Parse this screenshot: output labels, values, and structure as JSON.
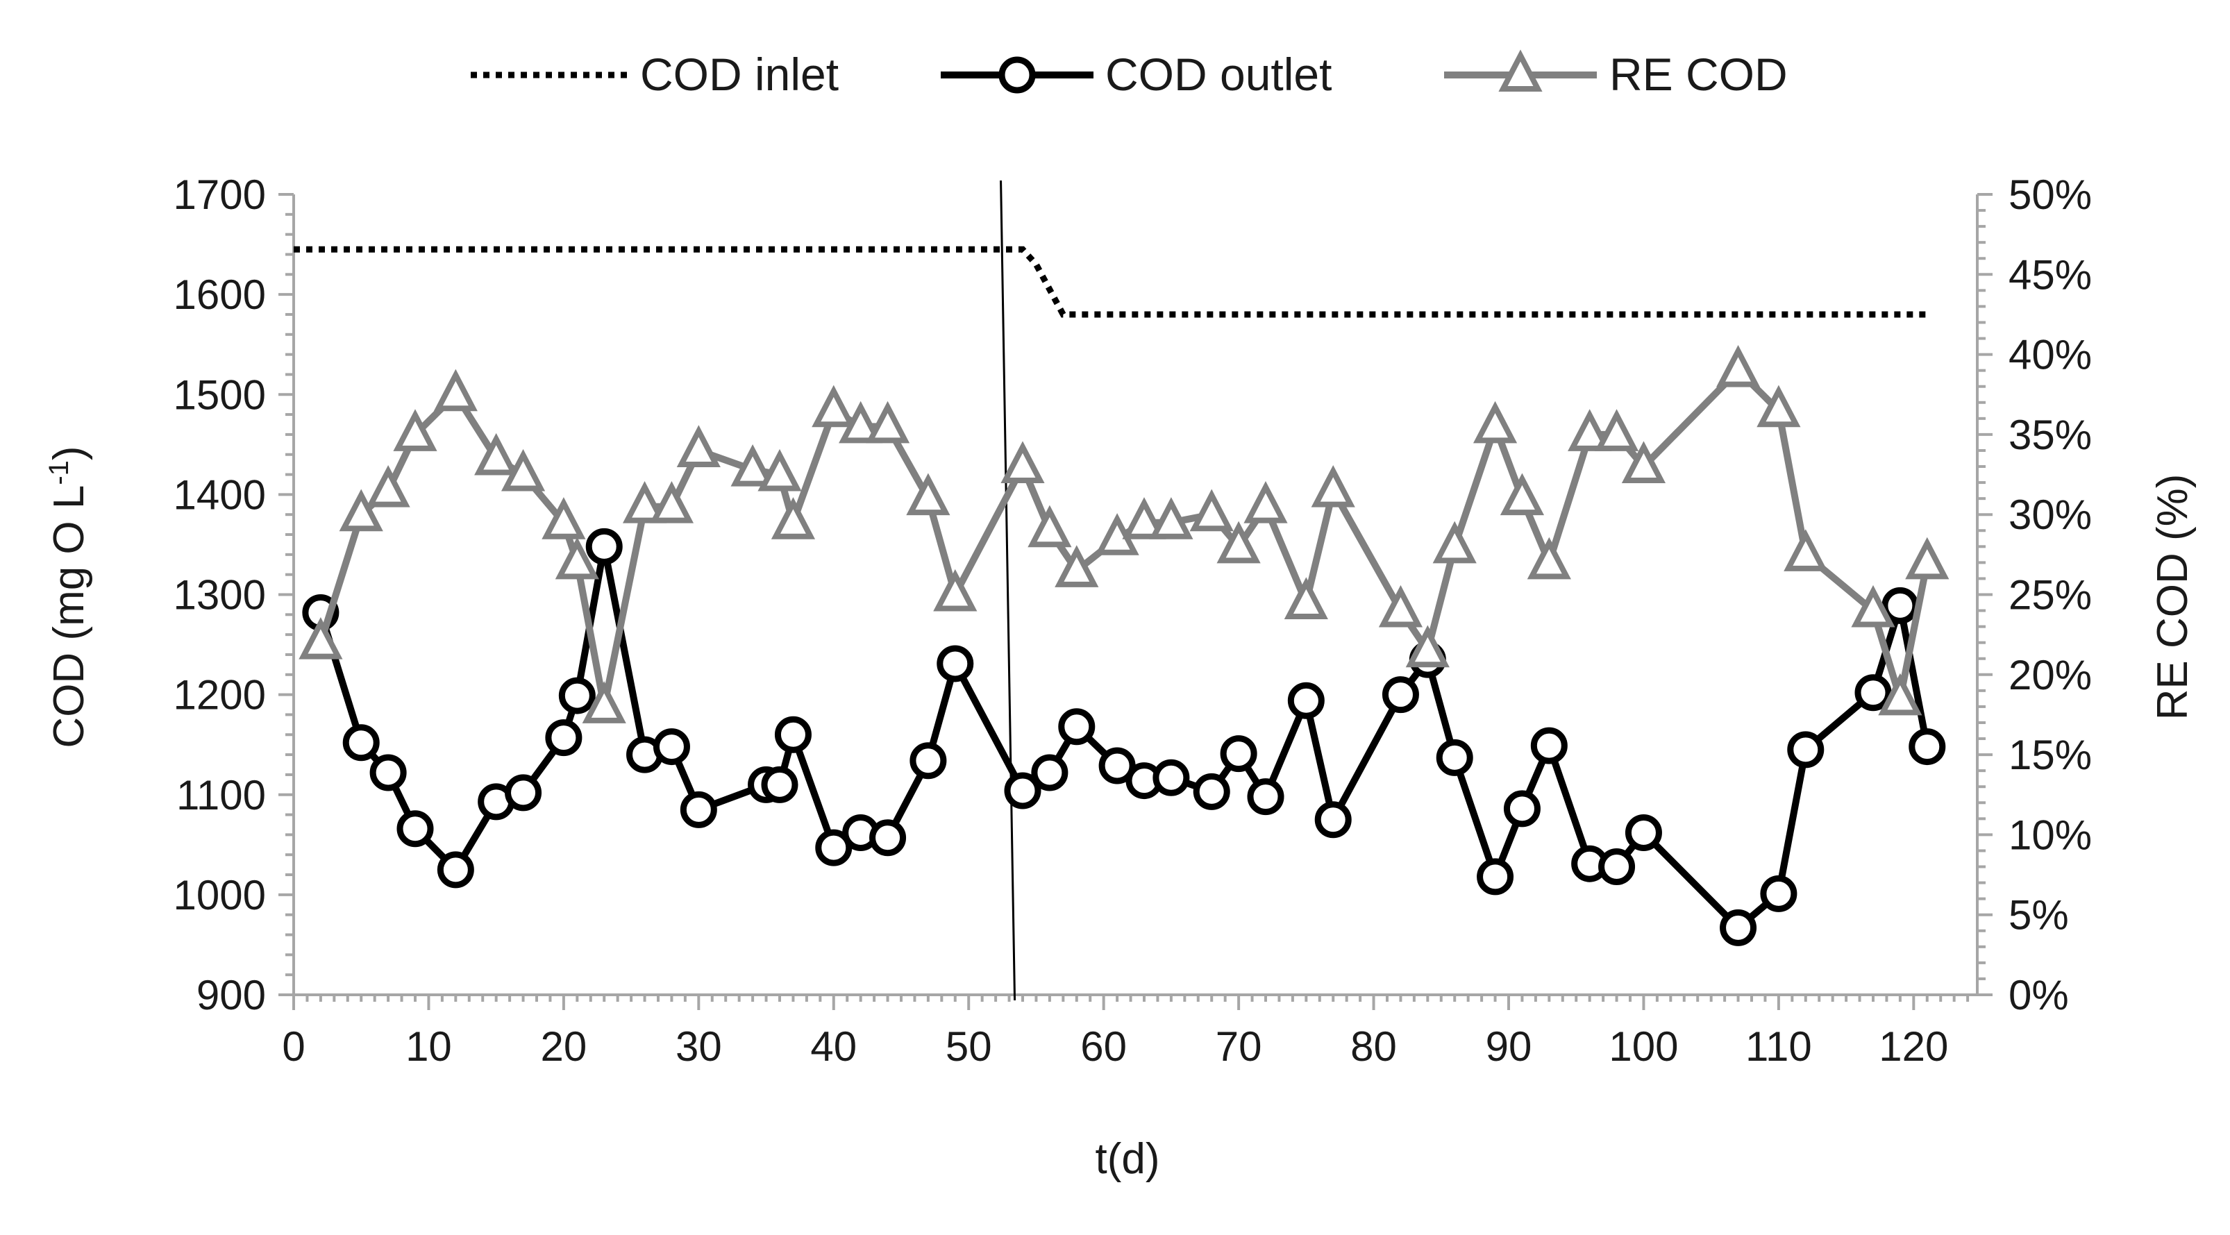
{
  "chart_data": {
    "type": "line",
    "title": "",
    "xlabel": "t(d)",
    "ylabel": "COD (mg O L",
    "ylabel_superscript": "-1",
    "ylabel_close": ")",
    "y2label": "RE COD (%)",
    "xlim": [
      0,
      126
    ],
    "ylim": [
      900,
      1700
    ],
    "y2lim": [
      0,
      50
    ],
    "x_ticks": [
      0,
      10,
      20,
      30,
      40,
      50,
      60,
      70,
      80,
      90,
      100,
      110,
      120
    ],
    "x_tick_labels": [
      "0",
      "10",
      "20",
      "30",
      "40",
      "50",
      "60",
      "70",
      "80",
      "90",
      "100",
      "110",
      "120"
    ],
    "y_ticks": [
      900,
      1000,
      1100,
      1200,
      1300,
      1400,
      1500,
      1600,
      1700
    ],
    "y_tick_labels": [
      "900",
      "1000",
      "1100",
      "1200",
      "1300",
      "1400",
      "1500",
      "1600",
      "1700"
    ],
    "y2_ticks": [
      0,
      5,
      10,
      15,
      20,
      25,
      30,
      35,
      40,
      45,
      50
    ],
    "y2_tick_labels": [
      "0%",
      "5%",
      "10%",
      "15%",
      "20%",
      "25%",
      "30%",
      "35%",
      "40%",
      "45%",
      "50%"
    ],
    "vertical_marker_x": 53,
    "legend_position": "top-center",
    "grid": false,
    "series": [
      {
        "name": "COD inlet",
        "axis": "left",
        "style": "dotted",
        "color": "#000000",
        "points": [
          [
            0,
            1645
          ],
          [
            54,
            1645
          ],
          [
            55,
            1630
          ],
          [
            57,
            1580
          ],
          [
            121,
            1580
          ]
        ]
      },
      {
        "name": "COD outlet",
        "axis": "left",
        "style": "solid-circle",
        "color": "#000000",
        "points": [
          [
            2,
            1282
          ],
          [
            5,
            1152
          ],
          [
            7,
            1122
          ],
          [
            9,
            1066
          ],
          [
            12,
            1025
          ],
          [
            15,
            1093
          ],
          [
            17,
            1102
          ],
          [
            20,
            1157
          ],
          [
            21,
            1199
          ],
          [
            23,
            1348
          ],
          [
            26,
            1140
          ],
          [
            28,
            1148
          ],
          [
            30,
            1085
          ],
          [
            35,
            1110
          ],
          [
            36,
            1110
          ],
          [
            37,
            1160
          ],
          [
            40,
            1047
          ],
          [
            42,
            1062
          ],
          [
            44,
            1057
          ],
          [
            47,
            1134
          ],
          [
            49,
            1231
          ],
          [
            54,
            1104
          ],
          [
            56,
            1122
          ],
          [
            58,
            1168
          ],
          [
            61,
            1129
          ],
          [
            63,
            1114
          ],
          [
            65,
            1117
          ],
          [
            68,
            1103
          ],
          [
            70,
            1141
          ],
          [
            72,
            1098
          ],
          [
            75,
            1194
          ],
          [
            77,
            1075
          ],
          [
            82,
            1200
          ],
          [
            84,
            1235
          ],
          [
            86,
            1137
          ],
          [
            89,
            1018
          ],
          [
            91,
            1086
          ],
          [
            93,
            1149
          ],
          [
            96,
            1031
          ],
          [
            98,
            1028
          ],
          [
            100,
            1062
          ],
          [
            107,
            967
          ],
          [
            110,
            1001
          ],
          [
            112,
            1145
          ],
          [
            117,
            1202
          ],
          [
            119,
            1289
          ],
          [
            121,
            1148
          ]
        ]
      },
      {
        "name": "RE COD",
        "axis": "right",
        "style": "solid-triangle",
        "color": "#808080",
        "points": [
          [
            2,
            22
          ],
          [
            5,
            30
          ],
          [
            7,
            31.5
          ],
          [
            9,
            35
          ],
          [
            12,
            37.5
          ],
          [
            15,
            33.5
          ],
          [
            17,
            32.5
          ],
          [
            20,
            29.5
          ],
          [
            21,
            27
          ],
          [
            23,
            18
          ],
          [
            26,
            30.5
          ],
          [
            28,
            30.5
          ],
          [
            30,
            34
          ],
          [
            34,
            32.8
          ],
          [
            36,
            32.5
          ],
          [
            37,
            29.5
          ],
          [
            40,
            36.5
          ],
          [
            42,
            35.5
          ],
          [
            44,
            35.5
          ],
          [
            47,
            31
          ],
          [
            49,
            25
          ],
          [
            54,
            33
          ],
          [
            56,
            29
          ],
          [
            58,
            26.5
          ],
          [
            61,
            28.5
          ],
          [
            63,
            29.5
          ],
          [
            65,
            29.5
          ],
          [
            68,
            30
          ],
          [
            70,
            28
          ],
          [
            72,
            30.5
          ],
          [
            75,
            24.5
          ],
          [
            77,
            31.5
          ],
          [
            82,
            24
          ],
          [
            84,
            21.5
          ],
          [
            86,
            28
          ],
          [
            89,
            35.5
          ],
          [
            91,
            31
          ],
          [
            93,
            27
          ],
          [
            96,
            35
          ],
          [
            98,
            35
          ],
          [
            100,
            33
          ],
          [
            107,
            39
          ],
          [
            110,
            36.5
          ],
          [
            112,
            27.5
          ],
          [
            117,
            24
          ],
          [
            119,
            18.5
          ],
          [
            121,
            27
          ]
        ]
      }
    ]
  }
}
